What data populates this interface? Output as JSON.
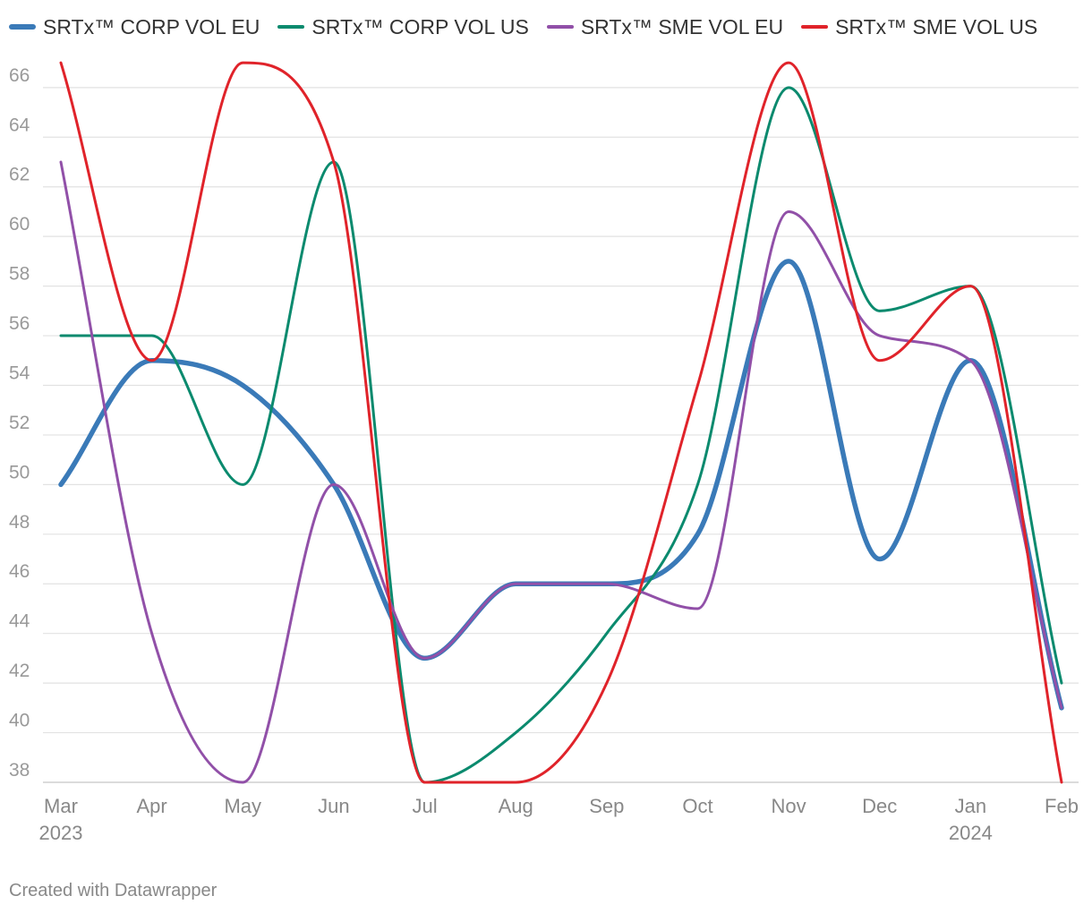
{
  "chart_data": {
    "type": "line",
    "title": "",
    "xlabel": "",
    "ylabel": "",
    "x": [
      "Mar",
      "Apr",
      "May",
      "Jun",
      "Jul",
      "Aug",
      "Sep",
      "Oct",
      "Nov",
      "Dec",
      "Jan",
      "Feb"
    ],
    "year_labels": [
      {
        "index": 0,
        "label": "2023"
      },
      {
        "index": 10,
        "label": "2024"
      }
    ],
    "ylim": [
      38,
      67
    ],
    "yticks": [
      38,
      40,
      42,
      44,
      46,
      48,
      50,
      52,
      54,
      56,
      58,
      60,
      62,
      64,
      66
    ],
    "grid": true,
    "legend_position": "top-left",
    "series": [
      {
        "name": "SRTx™ CORP VOL EU",
        "color": "#3a7ab8",
        "values": [
          50,
          55,
          54,
          50,
          43,
          46,
          46,
          48,
          59,
          47,
          55,
          41
        ]
      },
      {
        "name": "SRTx™ CORP VOL US",
        "color": "#0b8a6e",
        "values": [
          56,
          56,
          50,
          63,
          38,
          40,
          44,
          50,
          66,
          57,
          58,
          42
        ]
      },
      {
        "name": "SRTx™ SME VOL EU",
        "color": "#9150a8",
        "values": [
          63,
          44,
          38,
          50,
          43,
          46,
          46,
          45,
          61,
          56,
          55,
          41
        ]
      },
      {
        "name": "SRTx™ SME VOL US",
        "color": "#e0232a",
        "values": [
          67,
          55,
          67,
          63,
          38,
          38,
          42,
          54,
          67,
          55,
          58,
          38
        ]
      }
    ]
  },
  "footer": {
    "credit": "Created with Datawrapper"
  }
}
